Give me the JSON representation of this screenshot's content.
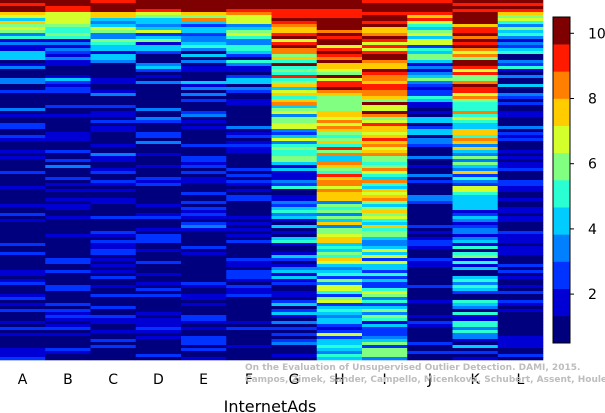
{
  "chart_data": {
    "type": "heatmap",
    "xlabel": "InternetAds",
    "categories": [
      "A",
      "B",
      "C",
      "D",
      "E",
      "F",
      "G",
      "H",
      "I",
      "J",
      "K",
      "L"
    ],
    "colorbar": {
      "range": [
        0.5,
        10.5
      ],
      "ticks": [
        2,
        4,
        6,
        8,
        10
      ],
      "colors": [
        "#00007f",
        "#0000d4",
        "#0033ff",
        "#0080ff",
        "#00ccff",
        "#2affd4",
        "#80ff80",
        "#d4ff2a",
        "#ffcc00",
        "#ff8000",
        "#ff1a00",
        "#7f0000"
      ]
    },
    "rows": 120,
    "column_profiles": [
      {
        "column": "A",
        "top": 10,
        "high_fraction": 0.05,
        "decay": 0.1,
        "floor": 0.5
      },
      {
        "column": "B",
        "top": 10,
        "high_fraction": 0.05,
        "decay": 0.1,
        "floor": 0.5
      },
      {
        "column": "C",
        "top": 10,
        "high_fraction": 0.05,
        "decay": 0.11,
        "floor": 0.5
      },
      {
        "column": "D",
        "top": 10,
        "high_fraction": 0.05,
        "decay": 0.12,
        "floor": 0.5
      },
      {
        "column": "E",
        "top": 10,
        "high_fraction": 0.05,
        "decay": 0.12,
        "floor": 0.5
      },
      {
        "column": "F",
        "top": 10,
        "high_fraction": 0.05,
        "decay": 0.12,
        "floor": 0.5
      },
      {
        "column": "G",
        "top": 10,
        "high_fraction": 0.3,
        "decay": 0.35,
        "floor": 1.0
      },
      {
        "column": "H",
        "top": 10,
        "high_fraction": 0.55,
        "decay": 0.55,
        "floor": 2.0
      },
      {
        "column": "I",
        "top": 10,
        "high_fraction": 0.55,
        "decay": 0.55,
        "floor": 2.0
      },
      {
        "column": "J",
        "top": 10,
        "high_fraction": 0.08,
        "decay": 0.2,
        "floor": 0.5
      },
      {
        "column": "K",
        "top": 10,
        "high_fraction": 0.4,
        "decay": 0.4,
        "floor": 1.0
      },
      {
        "column": "L",
        "top": 10,
        "high_fraction": 0.05,
        "decay": 0.12,
        "floor": 0.5
      }
    ]
  },
  "watermark": {
    "line1": "On the Evaluation of Unsupervised Outlier Detection. DAMI, 2015.",
    "line2": "Campos, Zimek, Sander, Campello, Micenkova, Schubert, Assent, Houle"
  }
}
